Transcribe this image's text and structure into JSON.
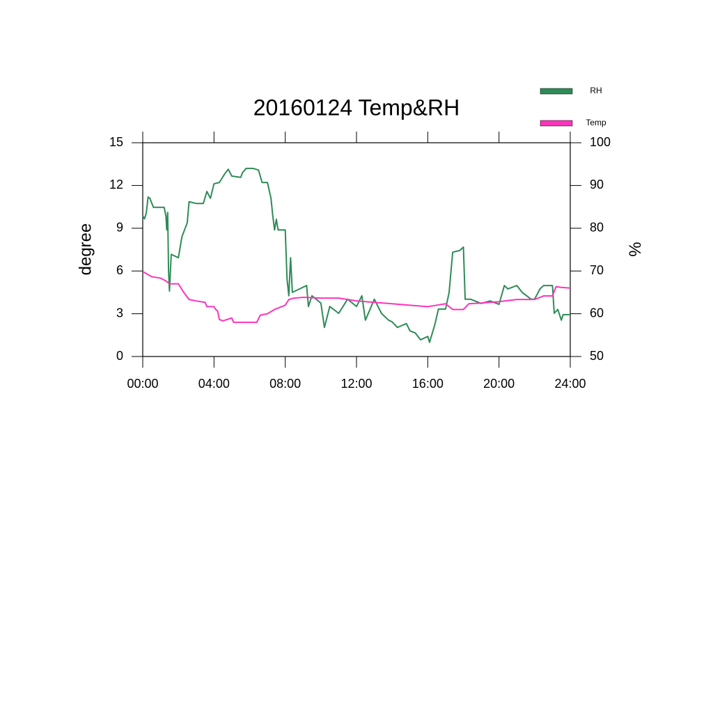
{
  "chart_data": {
    "type": "line",
    "title": "20160124 Temp&RH",
    "ylabel": "degree",
    "y2label": "%",
    "xlim": [
      0,
      24
    ],
    "xticks": [
      {
        "value": 0,
        "label": "00:00"
      },
      {
        "value": 4,
        "label": "04:00"
      },
      {
        "value": 8,
        "label": "08:00"
      },
      {
        "value": 12,
        "label": "12:00"
      },
      {
        "value": 16,
        "label": "16:00"
      },
      {
        "value": 20,
        "label": "20:00"
      },
      {
        "value": 24,
        "label": "24:00"
      }
    ],
    "ylim": [
      0,
      15
    ],
    "yticks": [
      0,
      3,
      6,
      9,
      12,
      15
    ],
    "y2lim": [
      50,
      100
    ],
    "y2ticks": [
      50,
      60,
      70,
      80,
      90,
      100
    ],
    "legend": "top-right",
    "series": [
      {
        "name": "RH",
        "color": "#2e8b57",
        "axis": "y2",
        "x": [
          0,
          0.1,
          0.2,
          0.3,
          0.4,
          0.6,
          1.0,
          1.2,
          1.3,
          1.35,
          1.4,
          1.45,
          1.5,
          1.6,
          2,
          2.2,
          2.5,
          2.6,
          3,
          3.4,
          3.6,
          3.8,
          4,
          4.3,
          4.6,
          4.8,
          5,
          5.5,
          5.6,
          5.8,
          6.2,
          6.5,
          6.7,
          7,
          7.2,
          7.3,
          7.4,
          7.5,
          7.6,
          8.0,
          8.1,
          8.2,
          8.3,
          8.4,
          8.8,
          9.2,
          9.3,
          9.5,
          10,
          10.2,
          10.5,
          11,
          11.5,
          12,
          12.3,
          12.5,
          13,
          13.4,
          13.8,
          14,
          14.3,
          14.8,
          15,
          15.3,
          15.6,
          16,
          16.1,
          16.4,
          16.6,
          17,
          17.2,
          17.4,
          17.8,
          18,
          18.1,
          18.4,
          19,
          19.5,
          20,
          20.3,
          20.5,
          21,
          21.3,
          21.8,
          22,
          22.3,
          22.5,
          23,
          23.1,
          23.3,
          23.5,
          23.6,
          24
        ],
        "values": [
          82.9,
          82.2,
          83.6,
          87.3,
          87.0,
          84.9,
          84.9,
          84.9,
          82.9,
          79.6,
          83.7,
          69.9,
          65.3,
          73.9,
          73.1,
          78,
          81.3,
          86.2,
          85.8,
          85.8,
          88.6,
          87,
          90.4,
          90.7,
          92.7,
          93.8,
          92.2,
          91.9,
          93,
          94,
          94,
          93.6,
          90.7,
          90.7,
          87,
          82.9,
          79.6,
          82.1,
          79.6,
          79.6,
          68.2,
          64.2,
          73.1,
          65,
          65.8,
          66.6,
          61.7,
          64.2,
          62.5,
          56.8,
          61.7,
          60.1,
          63.4,
          61.7,
          64.2,
          58.5,
          63.4,
          60.1,
          58.5,
          58.1,
          56.8,
          57.7,
          56.0,
          55.5,
          53.9,
          54.7,
          53.3,
          57.5,
          61.1,
          61.1,
          65,
          74.4,
          74.8,
          75.6,
          63.4,
          63.4,
          62.4,
          63,
          62.2,
          66.6,
          65.8,
          66.6,
          65,
          63.4,
          63.4,
          65.8,
          66.6,
          66.6,
          60.1,
          61,
          58.5,
          59.8,
          59.8
        ]
      },
      {
        "name": "Temp",
        "color": "#ff33bb",
        "axis": "y",
        "x": [
          0,
          0.5,
          1,
          1.3,
          1.5,
          2,
          2.3,
          2.6,
          3,
          3.5,
          3.6,
          4,
          4.1,
          4.2,
          4.3,
          4.5,
          5,
          5.1,
          5.5,
          6,
          6.4,
          6.6,
          7,
          7.4,
          8,
          8.2,
          8.5,
          9,
          10,
          11,
          11.5,
          12,
          13,
          14,
          15,
          16,
          16.5,
          17,
          17.4,
          18,
          18.3,
          19,
          20,
          21,
          22,
          22.5,
          23,
          23.2,
          23.5,
          24
        ],
        "values": [
          5.96,
          5.6,
          5.5,
          5.3,
          5.1,
          5.1,
          4.5,
          4.0,
          3.9,
          3.8,
          3.5,
          3.5,
          3.3,
          3.2,
          2.6,
          2.5,
          2.7,
          2.4,
          2.4,
          2.4,
          2.4,
          2.9,
          3.0,
          3.3,
          3.6,
          4.0,
          4.1,
          4.15,
          4.1,
          4.1,
          4.0,
          3.9,
          3.8,
          3.7,
          3.6,
          3.5,
          3.6,
          3.7,
          3.3,
          3.3,
          3.7,
          3.75,
          3.85,
          4.0,
          4.0,
          4.25,
          4.25,
          4.9,
          4.85,
          4.8
        ]
      }
    ]
  }
}
